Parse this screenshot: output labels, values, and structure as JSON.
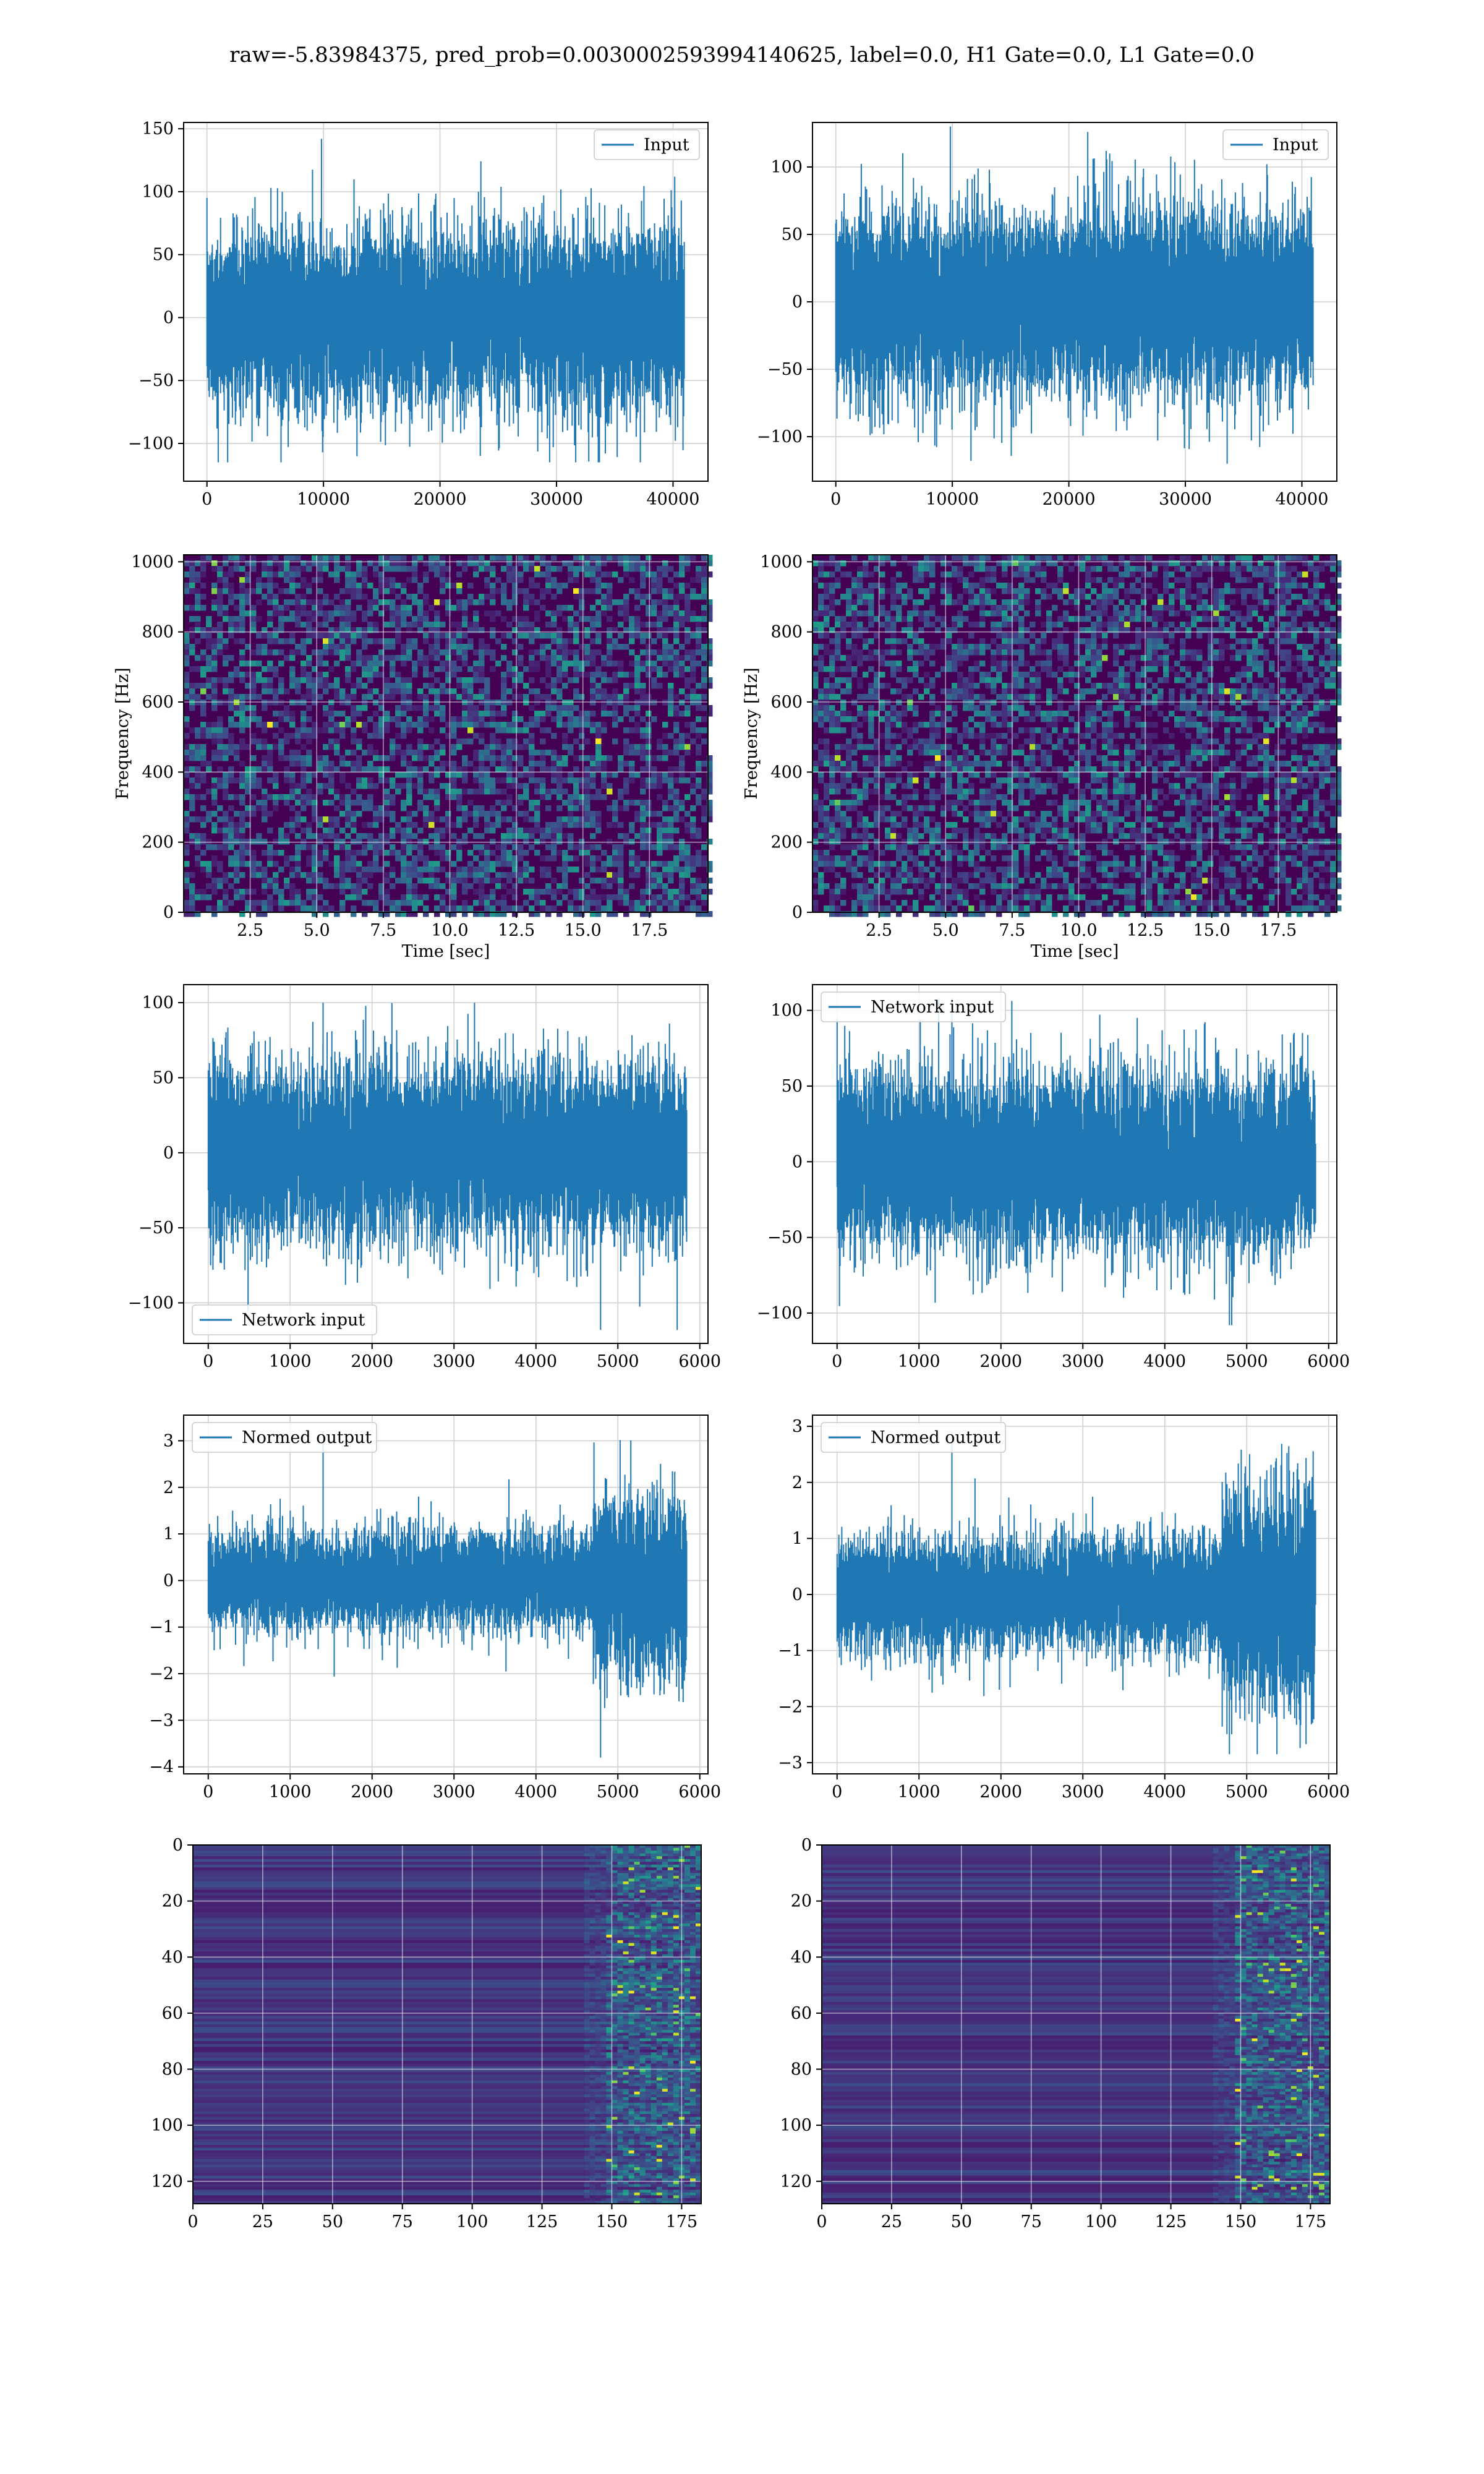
{
  "figure_title": "raw=-5.83984375, pred_prob=0.0030002593994140625, label=0.0, H1 Gate=0.0, L1 Gate=0.0",
  "colors": {
    "line": "#1f77b4",
    "grid": "#d0d0d0",
    "viridis_low": "#440154",
    "viridis_high": "#fde725"
  },
  "chart_data": [
    {
      "id": "r1c1",
      "type": "line",
      "series": [
        {
          "name": "Input",
          "n": 40960,
          "envelope": [
            -115,
            142
          ]
        }
      ],
      "xlim": [
        -2000,
        43000
      ],
      "ylim": [
        -130,
        155
      ],
      "xticks": [
        0,
        10000,
        20000,
        30000,
        40000
      ],
      "xticklabels": [
        "0",
        "10000",
        "20000",
        "30000",
        "40000"
      ],
      "yticks": [
        -100,
        -50,
        0,
        50,
        100,
        150
      ],
      "yticklabels": [
        "−100",
        "−50",
        "0",
        "50",
        "100",
        "150"
      ],
      "legend": "upper right",
      "xlabel": "",
      "ylabel": "",
      "grid": true
    },
    {
      "id": "r1c2",
      "type": "line",
      "series": [
        {
          "name": "Input",
          "n": 40960,
          "envelope": [
            -120,
            130
          ]
        }
      ],
      "xlim": [
        -2000,
        43000
      ],
      "ylim": [
        -133,
        133
      ],
      "xticks": [
        0,
        10000,
        20000,
        30000,
        40000
      ],
      "xticklabels": [
        "0",
        "10000",
        "20000",
        "30000",
        "40000"
      ],
      "yticks": [
        -100,
        -50,
        0,
        50,
        100
      ],
      "yticklabels": [
        "−100",
        "−50",
        "0",
        "50",
        "100"
      ],
      "legend": "upper right",
      "xlabel": "",
      "ylabel": "",
      "grid": true
    },
    {
      "id": "r2c1",
      "type": "heatmap",
      "xlim": [
        0,
        19.7
      ],
      "ylim": [
        0,
        1020
      ],
      "xticks": [
        2.5,
        5.0,
        7.5,
        10.0,
        12.5,
        15.0,
        17.5
      ],
      "xticklabels": [
        "2.5",
        "5.0",
        "7.5",
        "10.0",
        "12.5",
        "15.0",
        "17.5"
      ],
      "yticks": [
        0,
        200,
        400,
        600,
        800,
        1000
      ],
      "yticklabels": [
        "0",
        "200",
        "400",
        "600",
        "800",
        "1000"
      ],
      "xlabel": "Time [sec]",
      "ylabel": "Frequency [Hz]",
      "grid": true,
      "colormap": "viridis"
    },
    {
      "id": "r2c2",
      "type": "heatmap",
      "xlim": [
        0,
        19.7
      ],
      "ylim": [
        0,
        1020
      ],
      "xticks": [
        2.5,
        5.0,
        7.5,
        10.0,
        12.5,
        15.0,
        17.5
      ],
      "xticklabels": [
        "2.5",
        "5.0",
        "7.5",
        "10.0",
        "12.5",
        "15.0",
        "17.5"
      ],
      "yticks": [
        0,
        200,
        400,
        600,
        800,
        1000
      ],
      "yticklabels": [
        "0",
        "200",
        "400",
        "600",
        "800",
        "1000"
      ],
      "xlabel": "Time [sec]",
      "ylabel": "Frequency [Hz]",
      "grid": true,
      "colormap": "viridis"
    },
    {
      "id": "r3c1",
      "type": "line",
      "series": [
        {
          "name": "Network input",
          "n": 5840,
          "envelope": [
            -118,
            100
          ]
        }
      ],
      "xlim": [
        -300,
        6100
      ],
      "ylim": [
        -127,
        112
      ],
      "xticks": [
        0,
        1000,
        2000,
        3000,
        4000,
        5000,
        6000
      ],
      "xticklabels": [
        "0",
        "1000",
        "2000",
        "3000",
        "4000",
        "5000",
        "6000"
      ],
      "yticks": [
        -100,
        -50,
        0,
        50,
        100
      ],
      "yticklabels": [
        "−100",
        "−50",
        "0",
        "50",
        "100"
      ],
      "legend": "lower left",
      "xlabel": "",
      "ylabel": "",
      "grid": true
    },
    {
      "id": "r3c2",
      "type": "line",
      "series": [
        {
          "name": "Network input",
          "n": 5840,
          "envelope": [
            -108,
            108
          ]
        }
      ],
      "xlim": [
        -300,
        6100
      ],
      "ylim": [
        -120,
        117
      ],
      "xticks": [
        0,
        1000,
        2000,
        3000,
        4000,
        5000,
        6000
      ],
      "xticklabels": [
        "0",
        "1000",
        "2000",
        "3000",
        "4000",
        "5000",
        "6000"
      ],
      "yticks": [
        -100,
        -50,
        0,
        50,
        100
      ],
      "yticklabels": [
        "−100",
        "−50",
        "0",
        "50",
        "100"
      ],
      "legend": "upper left",
      "xlabel": "",
      "ylabel": "",
      "grid": true
    },
    {
      "id": "r4c1",
      "type": "line",
      "series": [
        {
          "name": "Normed output",
          "n": 5840,
          "envelope": [
            -3.8,
            3.2
          ]
        }
      ],
      "xlim": [
        -300,
        6100
      ],
      "ylim": [
        -4.15,
        3.55
      ],
      "xticks": [
        0,
        1000,
        2000,
        3000,
        4000,
        5000,
        6000
      ],
      "xticklabels": [
        "0",
        "1000",
        "2000",
        "3000",
        "4000",
        "5000",
        "6000"
      ],
      "yticks": [
        -4,
        -3,
        -2,
        -1,
        0,
        1,
        2,
        3
      ],
      "yticklabels": [
        "−4",
        "−3",
        "−2",
        "−1",
        "0",
        "1",
        "2",
        "3"
      ],
      "legend": "upper left",
      "xlabel": "",
      "ylabel": "",
      "grid": true
    },
    {
      "id": "r4c2",
      "type": "line",
      "series": [
        {
          "name": "Normed output",
          "n": 5840,
          "envelope": [
            -2.85,
            2.9
          ]
        }
      ],
      "xlim": [
        -300,
        6100
      ],
      "ylim": [
        -3.2,
        3.2
      ],
      "xticks": [
        0,
        1000,
        2000,
        3000,
        4000,
        5000,
        6000
      ],
      "xticklabels": [
        "0",
        "1000",
        "2000",
        "3000",
        "4000",
        "5000",
        "6000"
      ],
      "yticks": [
        -3,
        -2,
        -1,
        0,
        1,
        2,
        3
      ],
      "yticklabels": [
        "−3",
        "−2",
        "−1",
        "0",
        "1",
        "2",
        "3"
      ],
      "legend": "upper left",
      "xlabel": "",
      "ylabel": "",
      "grid": true
    },
    {
      "id": "r5c1",
      "type": "heatmap",
      "xlim": [
        0,
        182
      ],
      "ylim": [
        128,
        0
      ],
      "xticks": [
        0,
        25,
        50,
        75,
        100,
        125,
        150,
        175
      ],
      "xticklabels": [
        "0",
        "25",
        "50",
        "75",
        "100",
        "125",
        "150",
        "175"
      ],
      "yticks": [
        0,
        20,
        40,
        60,
        80,
        100,
        120
      ],
      "yticklabels": [
        "0",
        "20",
        "40",
        "60",
        "80",
        "100",
        "120"
      ],
      "xlabel": "",
      "ylabel": "",
      "grid": true,
      "colormap": "viridis"
    },
    {
      "id": "r5c2",
      "type": "heatmap",
      "xlim": [
        0,
        182
      ],
      "ylim": [
        128,
        0
      ],
      "xticks": [
        0,
        25,
        50,
        75,
        100,
        125,
        150,
        175
      ],
      "xticklabels": [
        "0",
        "25",
        "50",
        "75",
        "100",
        "125",
        "150",
        "175"
      ],
      "yticks": [
        0,
        20,
        40,
        60,
        80,
        100,
        120
      ],
      "yticklabels": [
        "0",
        "20",
        "40",
        "60",
        "80",
        "100",
        "120"
      ],
      "xlabel": "",
      "ylabel": "",
      "grid": true,
      "colormap": "viridis"
    }
  ]
}
